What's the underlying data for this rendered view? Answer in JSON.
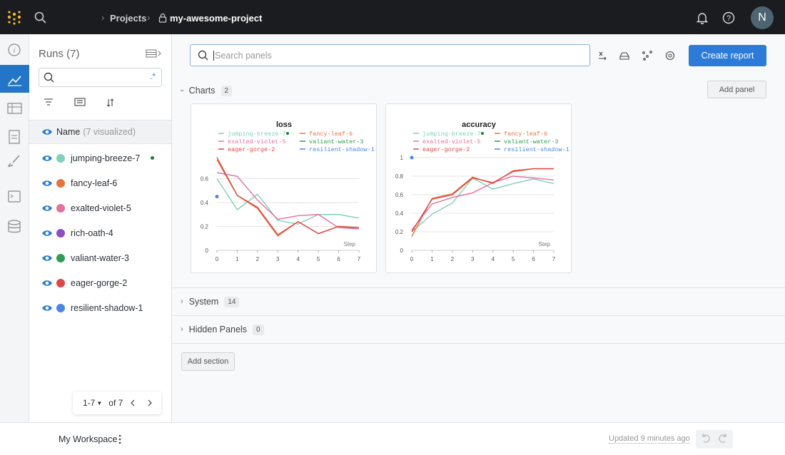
{
  "header": {
    "breadcrumb": "Projects",
    "project": "my-awesome-project",
    "avatar": "N"
  },
  "sidebar": {
    "title": "Runs (7)",
    "column": "Name",
    "column_note": "(7 visualized)",
    "runs": [
      {
        "name": "jumping-breeze-7",
        "color": "#7fd1b9"
      },
      {
        "name": "fancy-leaf-6",
        "color": "#e8743b"
      },
      {
        "name": "exalted-violet-5",
        "color": "#e96f9f"
      },
      {
        "name": "rich-oath-4",
        "color": "#8e4ec6"
      },
      {
        "name": "valiant-water-3",
        "color": "#2f9e54"
      },
      {
        "name": "eager-gorge-2",
        "color": "#e04646"
      },
      {
        "name": "resilient-shadow-1",
        "color": "#4a86e8"
      }
    ],
    "pagination": {
      "range": "1-7",
      "total": "of 7"
    }
  },
  "toolbar": {
    "search_placeholder": "Search panels",
    "create_report": "Create report"
  },
  "sections": [
    {
      "name": "Charts",
      "count": 2
    },
    {
      "name": "System",
      "count": 14
    },
    {
      "name": "Hidden Panels",
      "count": 0
    }
  ],
  "add_panel": "Add panel",
  "add_section": "Add section",
  "panels": [
    {
      "type": "line",
      "title": "loss",
      "x_label": "Step",
      "x": [
        0,
        1,
        2,
        3,
        4,
        5,
        6,
        7
      ],
      "xlim": [
        0,
        7
      ],
      "xticks": [
        0,
        1,
        2,
        3,
        4,
        5,
        6,
        7
      ],
      "ylim": [
        0,
        0.8
      ],
      "yticks": [
        0,
        0.2,
        0.4,
        0.6
      ],
      "grid": true,
      "series": [
        {
          "name": "jumping-breeze-7",
          "color": "#7fd1b9",
          "values": [
            0.6,
            0.34,
            0.47,
            0.25,
            0.22,
            0.3,
            0.3,
            0.27
          ]
        },
        {
          "name": "fancy-leaf-6",
          "color": "#e8743b",
          "values": [
            0.78,
            0.46,
            0.35,
            0.12,
            0.24,
            0.14,
            0.2,
            0.18
          ]
        },
        {
          "name": "exalted-violet-5",
          "color": "#e96f9f",
          "values": [
            0.65,
            0.62,
            0.42,
            0.26,
            0.29,
            0.3,
            0.19,
            0.18
          ]
        },
        {
          "name": "valiant-water-3",
          "color": "#2f9e54",
          "values": [
            null,
            null,
            null,
            null,
            null,
            null,
            null,
            null
          ]
        },
        {
          "name": "eager-gorge-2",
          "color": "#e04646",
          "values": [
            0.76,
            0.46,
            0.36,
            0.13,
            0.24,
            0.14,
            0.2,
            0.19
          ]
        },
        {
          "name": "resilient-shadow-1",
          "color": "#4a86e8",
          "values": [
            0.45,
            null,
            null,
            null,
            null,
            null,
            null,
            null
          ]
        }
      ]
    },
    {
      "type": "line",
      "title": "accuracy",
      "x_label": "Step",
      "x": [
        0,
        1,
        2,
        3,
        4,
        5,
        6,
        7
      ],
      "xlim": [
        0,
        7
      ],
      "xticks": [
        0,
        1,
        2,
        3,
        4,
        5,
        6,
        7
      ],
      "ylim": [
        0,
        1
      ],
      "yticks": [
        0,
        0.2,
        0.4,
        0.6,
        0.8,
        1
      ],
      "grid": true,
      "series": [
        {
          "name": "jumping-breeze-7",
          "color": "#7fd1b9",
          "values": [
            0.2,
            0.39,
            0.51,
            0.78,
            0.66,
            0.72,
            0.77,
            0.72
          ]
        },
        {
          "name": "fancy-leaf-6",
          "color": "#e8743b",
          "values": [
            0.15,
            0.56,
            0.61,
            0.79,
            0.72,
            0.86,
            0.88,
            0.88
          ]
        },
        {
          "name": "exalted-violet-5",
          "color": "#e96f9f",
          "values": [
            0.22,
            0.5,
            0.57,
            0.62,
            0.73,
            0.8,
            0.78,
            0.76
          ]
        },
        {
          "name": "valiant-water-3",
          "color": "#2f9e54",
          "values": [
            null,
            null,
            null,
            null,
            null,
            null,
            null,
            null
          ]
        },
        {
          "name": "eager-gorge-2",
          "color": "#e04646",
          "values": [
            0.2,
            0.55,
            0.6,
            0.78,
            0.73,
            0.85,
            0.88,
            0.88
          ]
        },
        {
          "name": "resilient-shadow-1",
          "color": "#4a86e8",
          "values": [
            1,
            null,
            null,
            null,
            null,
            null,
            null,
            null
          ]
        }
      ]
    }
  ],
  "footer": {
    "workspace": "My Workspace",
    "updated": "Updated 9 minutes ago"
  }
}
